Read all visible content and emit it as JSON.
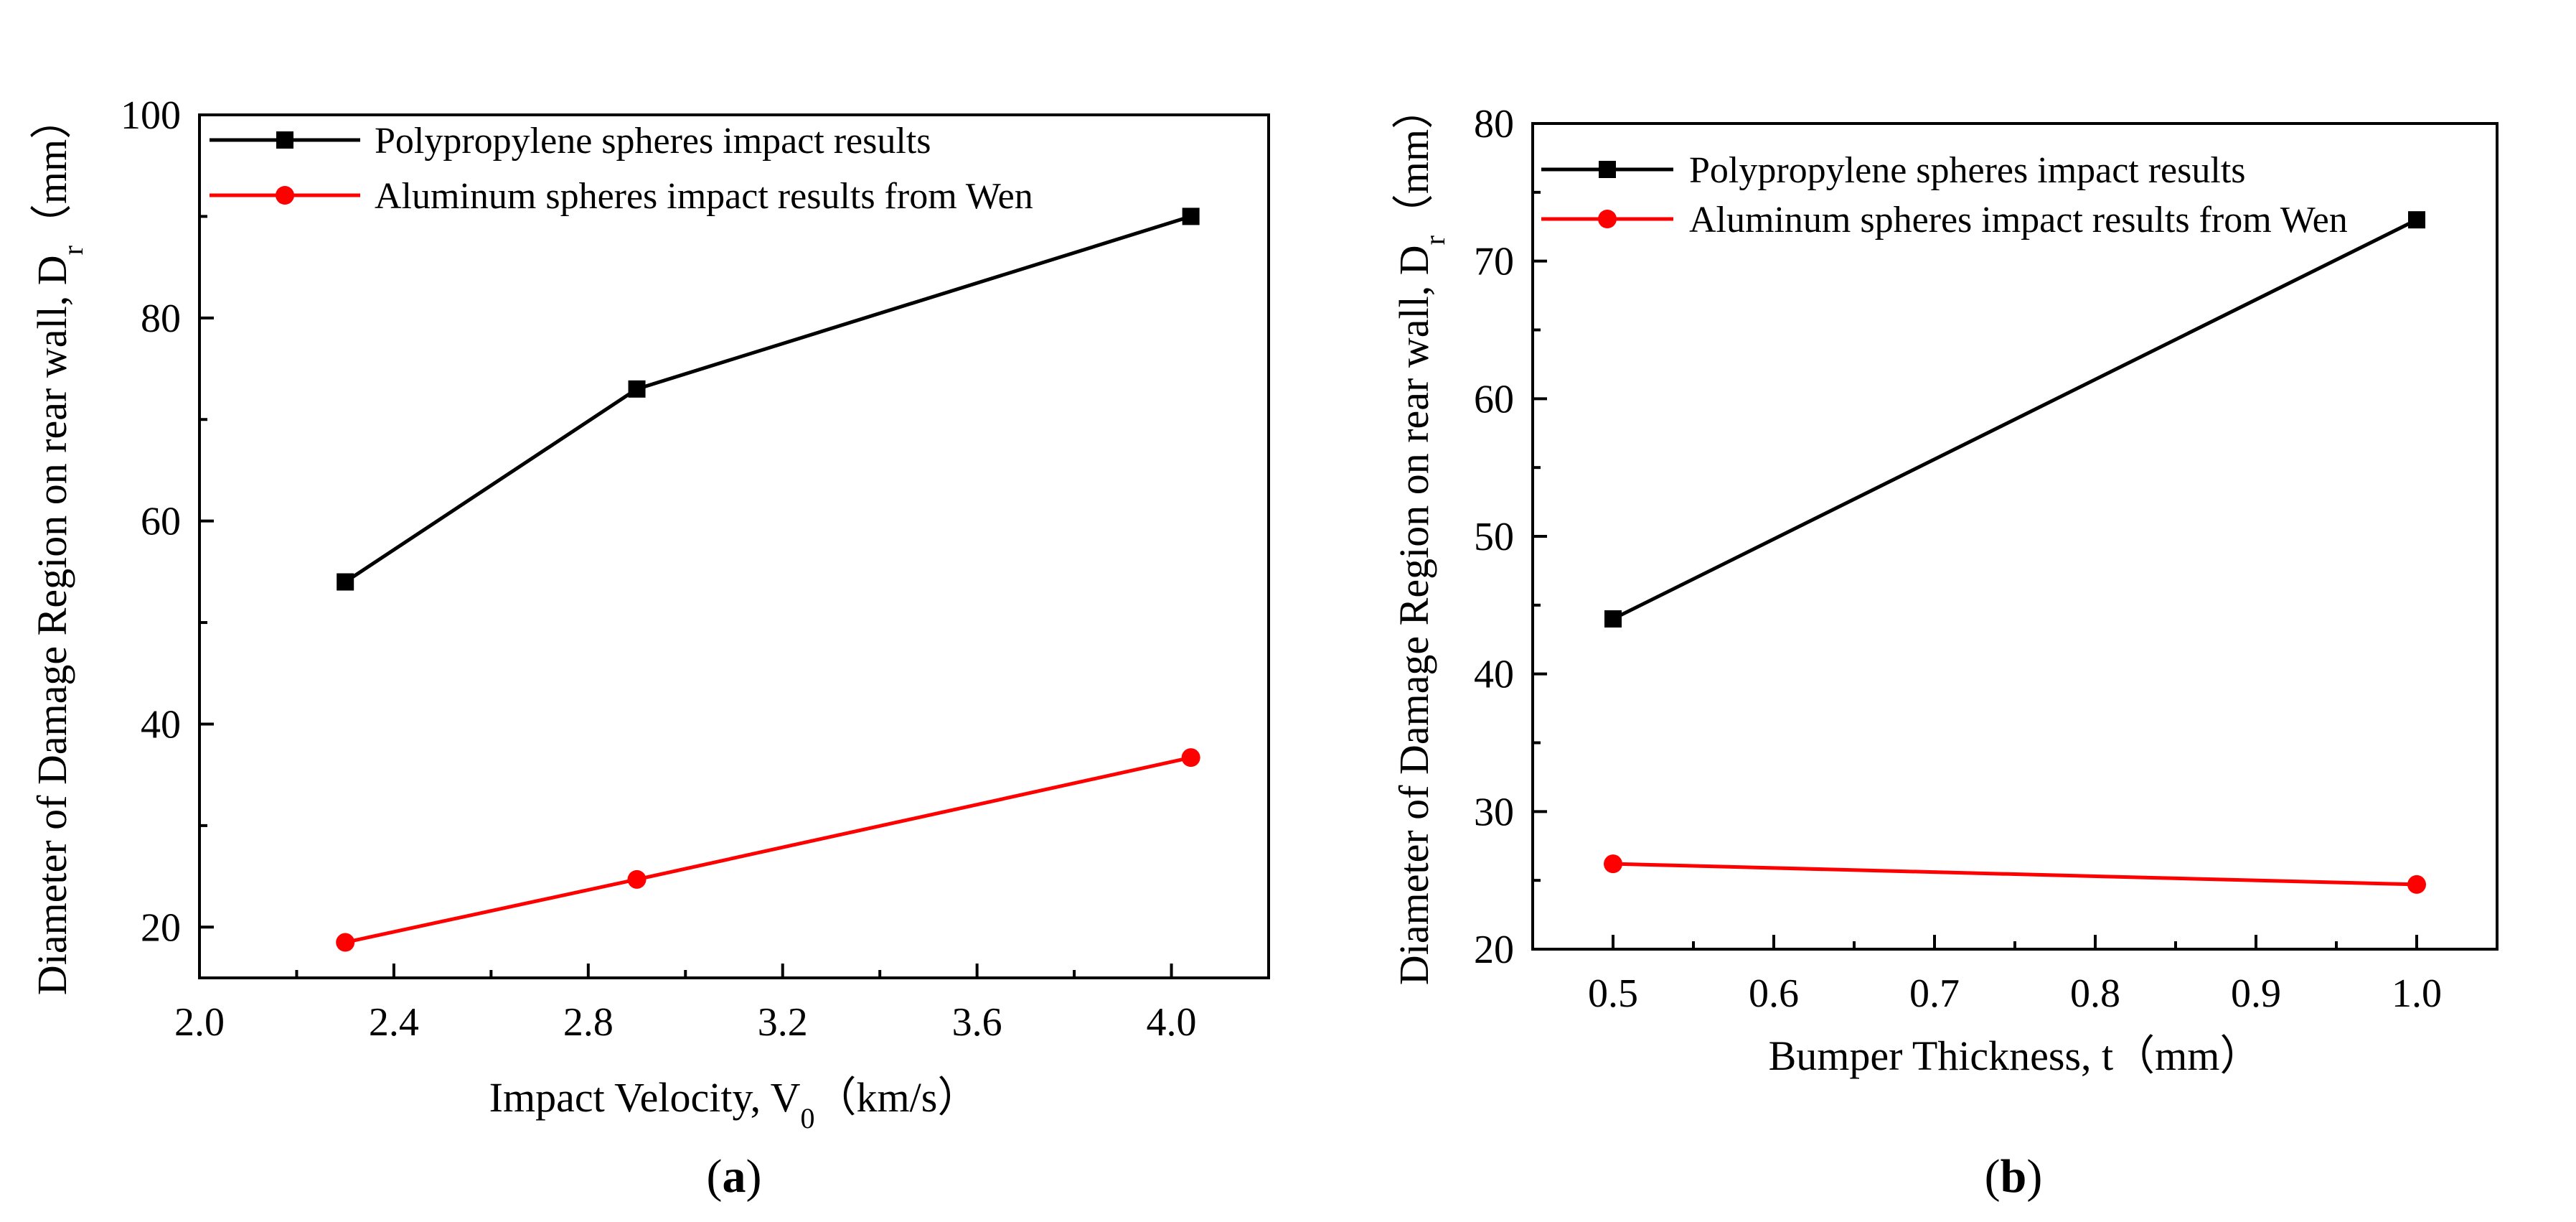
{
  "chart_data": [
    {
      "id": "a",
      "type": "line",
      "caption": "(a)",
      "xlabel": "Impact Velocity, V",
      "xlabel_sub": "0",
      "xlabel_unit": "（km/s）",
      "ylabel": "Diameter of Damage Region on rear wall,  D",
      "ylabel_sub": "r",
      "ylabel_unit": "（mm）",
      "xlim": [
        2.0,
        4.2
      ],
      "ylim": [
        15,
        100
      ],
      "xticks": [
        2.0,
        2.4,
        2.8,
        3.2,
        3.6,
        4.0
      ],
      "xtick_labels": [
        "2.0",
        "2.4",
        "2.8",
        "3.2",
        "3.6",
        "4.0"
      ],
      "yticks": [
        20,
        40,
        60,
        80,
        100
      ],
      "ytick_labels": [
        "20",
        "40",
        "60",
        "80",
        "100"
      ],
      "series": [
        {
          "name": "Polypropylene spheres impact results",
          "color": "#000000",
          "marker": "square",
          "x": [
            2.3,
            2.9,
            4.04
          ],
          "y": [
            54,
            73,
            90
          ]
        },
        {
          "name": "Aluminum spheres impact results from Wen",
          "color": "#ff0000",
          "marker": "circle",
          "x": [
            2.3,
            2.9,
            4.04
          ],
          "y": [
            18.5,
            24.7,
            36.7
          ]
        }
      ],
      "legend": "top-left"
    },
    {
      "id": "b",
      "type": "line",
      "caption": "(b)",
      "xlabel": "Bumper Thickness, t（mm）",
      "ylabel": "Diameter of Damage Region on rear wall,  D",
      "ylabel_sub": "r",
      "ylabel_unit": "（mm）",
      "xlim": [
        0.45,
        1.05
      ],
      "ylim": [
        20,
        80
      ],
      "xticks": [
        0.5,
        0.6,
        0.7,
        0.8,
        0.9,
        1.0
      ],
      "xtick_labels": [
        "0.5",
        "0.6",
        "0.7",
        "0.8",
        "0.9",
        "1.0"
      ],
      "yticks": [
        20,
        30,
        40,
        50,
        60,
        70,
        80
      ],
      "ytick_labels": [
        "20",
        "30",
        "40",
        "50",
        "60",
        "70",
        "80"
      ],
      "series": [
        {
          "name": "Polypropylene spheres impact results",
          "color": "#000000",
          "marker": "square",
          "x": [
            0.5,
            1.0
          ],
          "y": [
            44,
            73
          ]
        },
        {
          "name": "Aluminum spheres impact results from Wen",
          "color": "#ff0000",
          "marker": "circle",
          "x": [
            0.5,
            1.0
          ],
          "y": [
            26.2,
            24.7
          ]
        }
      ],
      "legend": "top-left"
    }
  ]
}
